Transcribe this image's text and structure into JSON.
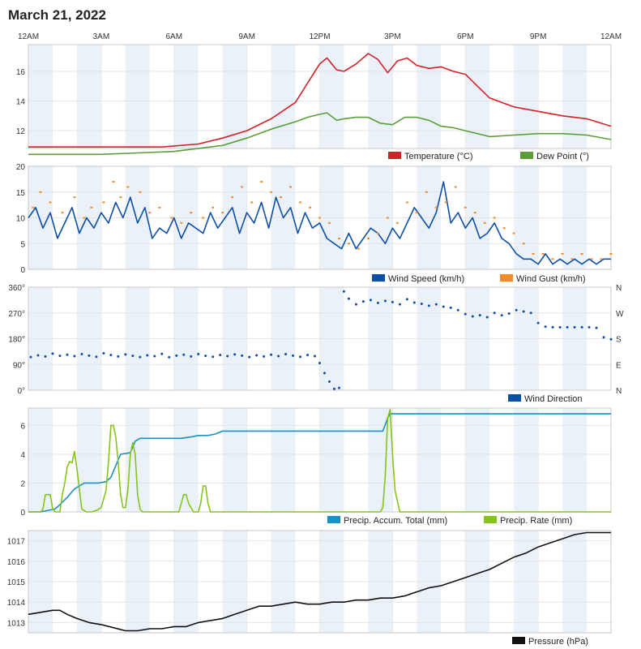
{
  "page": {
    "title": "March 21, 2022"
  },
  "time_axis": {
    "labels": [
      "12AM",
      "3AM",
      "6AM",
      "9AM",
      "12PM",
      "3PM",
      "6PM",
      "9PM",
      "12AM"
    ]
  },
  "colors": {
    "temperature": "#d42027",
    "dew_point": "#5a9e3a",
    "wind_speed": "#0d4fa6",
    "wind_gust": "#f58a2a",
    "wind_direction": "#0d4fa6",
    "precip_accum": "#1a8fc8",
    "precip_rate": "#86c41c",
    "pressure": "#111111",
    "band": "#eaf1f8",
    "grid": "#e4e4e4",
    "border": "#c8c8c8"
  },
  "chart_data": [
    {
      "id": "temperature",
      "type": "line",
      "title": "",
      "x_unit": "hours since 12AM",
      "x_range": [
        0,
        24
      ],
      "ylim": [
        10.8,
        17.8
      ],
      "y_ticks": [
        12,
        14,
        16
      ],
      "y_tick_labels": [
        "12",
        "14",
        "16"
      ],
      "series": [
        {
          "name": "Temperature (°C)",
          "color_key": "temperature",
          "x": [
            0,
            3,
            4.5,
            5.5,
            7,
            8,
            9,
            10,
            11,
            11.5,
            12,
            12.3,
            12.7,
            13,
            13.5,
            14,
            14.4,
            14.8,
            15.2,
            15.6,
            16,
            16.5,
            17,
            17.5,
            18,
            18.5,
            19,
            20,
            21,
            22,
            23,
            24
          ],
          "values": [
            10.9,
            10.9,
            10.9,
            10.9,
            11.1,
            11.5,
            12.0,
            12.8,
            13.9,
            15.2,
            16.5,
            16.9,
            16.1,
            16.0,
            16.5,
            17.2,
            16.8,
            15.9,
            16.7,
            16.9,
            16.4,
            16.2,
            16.3,
            16.0,
            15.8,
            15.0,
            14.2,
            13.6,
            13.3,
            13.0,
            12.8,
            12.3
          ]
        },
        {
          "name": "Dew Point (°)",
          "color_key": "dew_point",
          "x": [
            0,
            3,
            4.5,
            6,
            8,
            9,
            10,
            11,
            11.5,
            12,
            12.3,
            12.7,
            13,
            13.5,
            14,
            14.5,
            15,
            15.5,
            16,
            16.5,
            17,
            17.5,
            18,
            19,
            20,
            21,
            22,
            23,
            24
          ],
          "values": [
            10.4,
            10.4,
            10.5,
            10.6,
            11.0,
            11.5,
            12.1,
            12.6,
            12.9,
            13.1,
            13.2,
            12.7,
            12.8,
            12.9,
            12.9,
            12.5,
            12.4,
            12.9,
            12.9,
            12.7,
            12.3,
            12.2,
            12.0,
            11.6,
            11.7,
            11.8,
            11.8,
            11.7,
            11.4
          ]
        }
      ],
      "legend": [
        "Temperature (°C)",
        "Dew Point (°)"
      ],
      "legend_position": "bottom-right"
    },
    {
      "id": "wind",
      "type": "line",
      "title": "",
      "x_unit": "hours since 12AM",
      "x_range": [
        0,
        24
      ],
      "ylim": [
        0,
        20
      ],
      "y_ticks": [
        0,
        5,
        10,
        15,
        20
      ],
      "y_tick_labels": [
        "0",
        "5",
        "10",
        "15",
        "20"
      ],
      "series": [
        {
          "name": "Wind Speed (km/h)",
          "color_key": "wind_speed",
          "style": "line",
          "x": [
            0,
            0.3,
            0.6,
            0.9,
            1.2,
            1.5,
            1.8,
            2.1,
            2.4,
            2.7,
            3.0,
            3.3,
            3.6,
            3.9,
            4.2,
            4.5,
            4.8,
            5.1,
            5.4,
            5.7,
            6.0,
            6.3,
            6.6,
            6.9,
            7.2,
            7.5,
            7.8,
            8.1,
            8.4,
            8.7,
            9.0,
            9.3,
            9.6,
            9.9,
            10.2,
            10.5,
            10.8,
            11.1,
            11.4,
            11.7,
            12.0,
            12.3,
            12.6,
            12.9,
            13.2,
            13.5,
            13.8,
            14.1,
            14.4,
            14.7,
            15.0,
            15.3,
            15.6,
            15.9,
            16.2,
            16.5,
            16.8,
            17.1,
            17.4,
            17.7,
            18.0,
            18.3,
            18.6,
            18.9,
            19.2,
            19.5,
            19.8,
            20.1,
            20.4,
            20.7,
            21.0,
            21.3,
            21.6,
            21.9,
            22.2,
            22.5,
            22.8,
            23.1,
            23.4,
            23.7,
            24.0
          ],
          "values": [
            10,
            12,
            8,
            11,
            6,
            9,
            12,
            7,
            10,
            8,
            11,
            9,
            13,
            10,
            14,
            9,
            12,
            6,
            8,
            7,
            10,
            6,
            9,
            8,
            7,
            11,
            8,
            10,
            12,
            7,
            11,
            9,
            13,
            8,
            14,
            10,
            12,
            7,
            11,
            8,
            9,
            6,
            5,
            4,
            7,
            4,
            6,
            8,
            7,
            5,
            8,
            6,
            9,
            12,
            10,
            8,
            11,
            17,
            9,
            11,
            8,
            10,
            6,
            7,
            9,
            6,
            5,
            3,
            2,
            2,
            1,
            3,
            1,
            2,
            1,
            2,
            1,
            2,
            1,
            2,
            2
          ]
        },
        {
          "name": "Wind Gust (km/h)",
          "color_key": "wind_gust",
          "style": "points",
          "x": [
            0.2,
            0.5,
            0.9,
            1.4,
            1.9,
            2.3,
            2.6,
            3.1,
            3.5,
            3.8,
            4.1,
            4.6,
            5.0,
            5.4,
            5.9,
            6.3,
            6.7,
            7.2,
            7.6,
            8.0,
            8.4,
            8.8,
            9.2,
            9.6,
            10.0,
            10.4,
            10.8,
            11.2,
            11.6,
            12.0,
            12.4,
            12.8,
            13.2,
            13.6,
            14.0,
            14.4,
            14.8,
            15.2,
            15.6,
            16.0,
            16.4,
            16.8,
            17.2,
            17.6,
            18.0,
            18.4,
            18.8,
            19.2,
            19.6,
            20.0,
            20.4,
            20.8,
            21.2,
            21.6,
            22.0,
            22.4,
            22.8,
            23.2,
            23.6,
            24.0
          ],
          "values": [
            12,
            15,
            13,
            11,
            14,
            10,
            12,
            13,
            17,
            14,
            16,
            15,
            11,
            12,
            10,
            9,
            11,
            10,
            12,
            11,
            14,
            16,
            13,
            17,
            15,
            14,
            16,
            13,
            12,
            10,
            9,
            6,
            5,
            4,
            6,
            7,
            10,
            9,
            13,
            11,
            15,
            12,
            13,
            16,
            12,
            11,
            9,
            10,
            8,
            7,
            5,
            3,
            3,
            2,
            3,
            2,
            3,
            2,
            2,
            3
          ]
        }
      ],
      "legend": [
        "Wind Speed (km/h)",
        "Wind Gust (km/h)"
      ],
      "legend_position": "bottom-right"
    },
    {
      "id": "wind_direction",
      "type": "scatter",
      "title": "",
      "x_unit": "hours since 12AM",
      "x_range": [
        0,
        24
      ],
      "ylim": [
        0,
        360
      ],
      "y_ticks": [
        0,
        90,
        180,
        270,
        360
      ],
      "y_tick_labels": [
        "0°",
        "90°",
        "180°",
        "270°",
        "360°"
      ],
      "right_tick_labels": [
        "N",
        "E",
        "S",
        "W",
        "N"
      ],
      "series": [
        {
          "name": "Wind Direction",
          "color_key": "wind_direction",
          "x": [
            0.1,
            0.4,
            0.7,
            1.0,
            1.3,
            1.6,
            1.9,
            2.2,
            2.5,
            2.8,
            3.1,
            3.4,
            3.7,
            4.0,
            4.3,
            4.6,
            4.9,
            5.2,
            5.5,
            5.8,
            6.1,
            6.4,
            6.7,
            7.0,
            7.3,
            7.6,
            7.9,
            8.2,
            8.5,
            8.8,
            9.1,
            9.4,
            9.7,
            10.0,
            10.3,
            10.6,
            10.9,
            11.2,
            11.5,
            11.8,
            12.0,
            12.2,
            12.4,
            12.6,
            12.8,
            13.0,
            13.2,
            13.5,
            13.8,
            14.1,
            14.4,
            14.7,
            15.0,
            15.3,
            15.6,
            15.9,
            16.2,
            16.5,
            16.8,
            17.1,
            17.4,
            17.7,
            18.0,
            18.3,
            18.6,
            18.9,
            19.2,
            19.5,
            19.8,
            20.1,
            20.4,
            20.7,
            21.0,
            21.3,
            21.6,
            21.9,
            22.2,
            22.5,
            22.8,
            23.1,
            23.4,
            23.7,
            24.0
          ],
          "values": [
            116,
            122,
            118,
            128,
            120,
            124,
            119,
            126,
            121,
            117,
            129,
            123,
            118,
            125,
            120,
            116,
            122,
            119,
            127,
            115,
            121,
            124,
            118,
            126,
            120,
            117,
            123,
            119,
            125,
            121,
            116,
            122,
            118,
            124,
            119,
            126,
            121,
            117,
            123,
            119,
            95,
            60,
            30,
            5,
            8,
            345,
            320,
            300,
            310,
            315,
            305,
            312,
            308,
            300,
            318,
            306,
            302,
            295,
            300,
            292,
            288,
            280,
            266,
            258,
            262,
            255,
            270,
            262,
            268,
            280,
            275,
            270,
            235,
            222,
            220,
            220,
            220,
            220,
            220,
            220,
            218,
            185,
            178
          ]
        }
      ],
      "legend": [
        "Wind Direction"
      ],
      "legend_position": "bottom-right"
    },
    {
      "id": "precipitation",
      "type": "line",
      "title": "",
      "x_unit": "hours since 12AM",
      "x_range": [
        0,
        24
      ],
      "ylim": [
        0,
        7.2
      ],
      "y_ticks": [
        0,
        2,
        4,
        6
      ],
      "y_tick_labels": [
        "0",
        "2",
        "4",
        "6"
      ],
      "series": [
        {
          "name": "Precip. Accum. Total (mm)",
          "color_key": "precip_accum",
          "x": [
            0,
            0.5,
            1.1,
            1.3,
            1.6,
            1.9,
            2.3,
            2.6,
            2.9,
            3.2,
            3.4,
            3.6,
            3.8,
            4.2,
            4.4,
            4.6,
            5.0,
            5.5,
            6.0,
            6.3,
            6.7,
            7.0,
            7.4,
            7.7,
            8.0,
            8.5,
            9.0,
            10.0,
            11.0,
            12.0,
            13.0,
            14.0,
            14.6,
            14.8,
            14.9,
            15.0,
            16.0,
            20.0,
            24.0
          ],
          "values": [
            0,
            0,
            0.2,
            0.5,
            1.0,
            1.6,
            2.0,
            2.0,
            2.0,
            2.1,
            2.4,
            3.2,
            4.0,
            4.1,
            4.9,
            5.1,
            5.1,
            5.1,
            5.1,
            5.1,
            5.2,
            5.3,
            5.3,
            5.4,
            5.6,
            5.6,
            5.6,
            5.6,
            5.6,
            5.6,
            5.6,
            5.6,
            5.6,
            6.5,
            6.8,
            6.8,
            6.8,
            6.8,
            6.8
          ]
        },
        {
          "name": "Precip. Rate (mm)",
          "color_key": "precip_rate",
          "x": [
            0,
            0.5,
            0.6,
            0.7,
            0.8,
            0.9,
            1.0,
            1.1,
            1.3,
            1.4,
            1.5,
            1.6,
            1.7,
            1.8,
            1.9,
            2.0,
            2.2,
            2.4,
            2.6,
            2.8,
            3.0,
            3.2,
            3.3,
            3.4,
            3.5,
            3.6,
            3.7,
            3.8,
            3.9,
            4.0,
            4.1,
            4.2,
            4.3,
            4.4,
            4.5,
            4.6,
            4.7,
            4.8,
            5.0,
            6.0,
            6.2,
            6.3,
            6.4,
            6.5,
            6.6,
            6.8,
            7.0,
            7.1,
            7.2,
            7.3,
            7.4,
            7.5,
            8.0,
            10.0,
            12.0,
            14.0,
            14.5,
            14.6,
            14.7,
            14.8,
            14.9,
            15.0,
            15.1,
            15.3,
            18.0,
            24.0
          ],
          "values": [
            0,
            0,
            0.2,
            1.2,
            1.2,
            1.2,
            0.2,
            0,
            0,
            1.2,
            2.0,
            3.1,
            3.5,
            3.4,
            4.2,
            3.0,
            0.2,
            0,
            0,
            0.1,
            0.3,
            1.5,
            3.5,
            6.0,
            6.0,
            5.2,
            3.5,
            1.2,
            0.3,
            0.3,
            1.5,
            4.0,
            4.8,
            4.0,
            1.2,
            0.2,
            0,
            0,
            0,
            0,
            0,
            0.6,
            1.2,
            1.2,
            0.6,
            0,
            0,
            0.6,
            1.8,
            1.8,
            0.6,
            0,
            0,
            0,
            0,
            0,
            0,
            0.3,
            2.5,
            6.5,
            7.1,
            4.0,
            1.5,
            0,
            0,
            0
          ]
        }
      ],
      "legend": [
        "Precip. Accum. Total (mm)",
        "Precip. Rate (mm)"
      ],
      "legend_position": "bottom-right"
    },
    {
      "id": "pressure",
      "type": "line",
      "title": "",
      "x_unit": "hours since 12AM",
      "x_range": [
        0,
        24
      ],
      "ylim": [
        1012.5,
        1017.5
      ],
      "y_ticks": [
        1013,
        1014,
        1015,
        1016,
        1017
      ],
      "y_tick_labels": [
        "1013",
        "1014",
        "1015",
        "1016",
        "1017"
      ],
      "series": [
        {
          "name": "Pressure (hPa)",
          "color_key": "pressure",
          "x": [
            0,
            0.5,
            1.0,
            1.3,
            1.6,
            2.0,
            2.5,
            3.0,
            3.5,
            4.0,
            4.5,
            5.0,
            5.5,
            6.0,
            6.5,
            7.0,
            7.5,
            8.0,
            8.5,
            9.0,
            9.5,
            10.0,
            10.5,
            11.0,
            11.5,
            12.0,
            12.5,
            13.0,
            13.5,
            14.0,
            14.5,
            15.0,
            15.5,
            16.0,
            16.5,
            17.0,
            17.5,
            18.0,
            18.5,
            19.0,
            19.5,
            20.0,
            20.5,
            21.0,
            21.5,
            22.0,
            22.5,
            23.0,
            23.5,
            24.0
          ],
          "values": [
            1013.4,
            1013.5,
            1013.6,
            1013.6,
            1013.4,
            1013.2,
            1013.0,
            1012.9,
            1012.75,
            1012.6,
            1012.6,
            1012.7,
            1012.7,
            1012.8,
            1012.8,
            1013.0,
            1013.1,
            1013.2,
            1013.4,
            1013.6,
            1013.8,
            1013.8,
            1013.9,
            1014.0,
            1013.9,
            1013.9,
            1014.0,
            1014.0,
            1014.1,
            1014.1,
            1014.2,
            1014.2,
            1014.3,
            1014.5,
            1014.7,
            1014.8,
            1015.0,
            1015.2,
            1015.4,
            1015.6,
            1015.9,
            1016.2,
            1016.4,
            1016.7,
            1016.9,
            1017.1,
            1017.3,
            1017.4,
            1017.4,
            1017.4
          ]
        }
      ],
      "legend": [
        "Pressure (hPa)"
      ],
      "legend_position": "bottom-right"
    }
  ]
}
